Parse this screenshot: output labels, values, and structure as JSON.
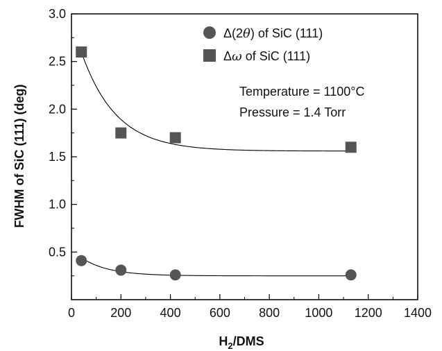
{
  "chart_data": {
    "type": "scatter",
    "xlabel": "H2/DMS",
    "xlabel_main": "H",
    "xlabel_sub": "2",
    "xlabel_rest": "/DMS",
    "ylabel": "FWHM of SiC (111) (deg)",
    "xlim": [
      0,
      1400
    ],
    "ylim": [
      0.0,
      3.0
    ],
    "x_ticks": [
      "0",
      "200",
      "400",
      "600",
      "800",
      "1000",
      "1200",
      "1400"
    ],
    "y_ticks": [
      "0.5",
      "1.0",
      "1.5",
      "2.0",
      "2.5",
      "3.0"
    ],
    "grid": false,
    "legend_position": "top-right",
    "series": [
      {
        "name": "Δ(2θ) of SiC (111)",
        "legend_prefix": "Δ(2",
        "legend_greek": "θ",
        "legend_suffix": ") of SiC (111)",
        "marker": "circle",
        "color": "#555555",
        "x": [
          40,
          200,
          420,
          1130
        ],
        "y": [
          0.41,
          0.31,
          0.26,
          0.26
        ]
      },
      {
        "name": "Δω of SiC (111)",
        "legend_prefix": "Δ",
        "legend_greek": "ω",
        "legend_suffix": " of SiC (111)",
        "marker": "square",
        "color": "#555555",
        "x": [
          40,
          200,
          420,
          1130
        ],
        "y": [
          2.6,
          1.75,
          1.7,
          1.6
        ]
      }
    ],
    "annotations": [
      "Temperature = 1100°C",
      "Pressure = 1.4 Torr"
    ]
  }
}
